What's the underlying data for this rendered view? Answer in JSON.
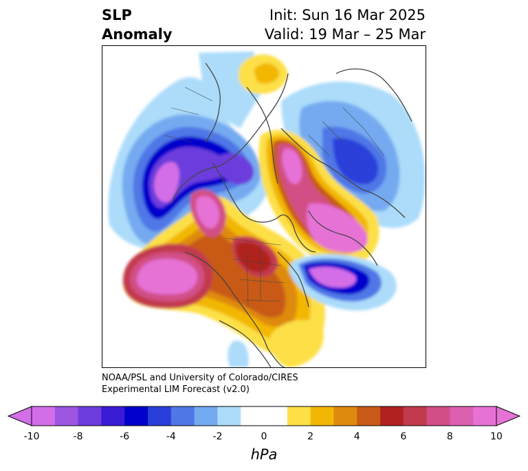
{
  "header": {
    "title_line1": "SLP",
    "title_line2": "Anomaly",
    "init": "Init: Sun 16 Mar 2025",
    "valid": "Valid: 19 Mar – 25 Mar"
  },
  "credit": {
    "line1": "NOAA/PSL and University of Colorado/CIRES",
    "line2": "Experimental LIM Forecast (v2.0)"
  },
  "colorbar": {
    "units": "hPa",
    "tick_labels": [
      "-10",
      "-8",
      "-6",
      "-4",
      "-2",
      "0",
      "2",
      "4",
      "6",
      "8",
      "10"
    ],
    "colors": [
      "#d36ee8",
      "#9c55e0",
      "#6c3cdc",
      "#3a1bd6",
      "#0000cc",
      "#2a3fd9",
      "#4f77e6",
      "#74aaf0",
      "#acdcfa",
      "#ffffff",
      "#ffffff",
      "#fde046",
      "#f2b705",
      "#de8a0e",
      "#c85a17",
      "#b0221f",
      "#c23a4e",
      "#d24f86",
      "#dc60b0",
      "#e672d6"
    ],
    "extend_low_color": "#d36ee8",
    "extend_high_color": "#e672d6"
  }
}
